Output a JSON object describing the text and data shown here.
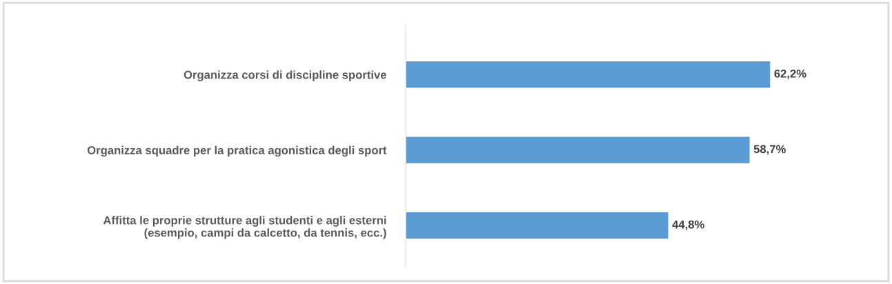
{
  "chart_data": {
    "type": "bar",
    "orientation": "horizontal",
    "categories": [
      "Organizza corsi di discipline sportive",
      "Organizza squadre per la pratica agonistica degli sport",
      "Affitta le proprie strutture agli studenti e agli esterni\n(esempio, campi da calcetto, da tennis, ecc.)"
    ],
    "values": [
      62.2,
      58.7,
      44.8
    ],
    "color": "#5b9bd5",
    "value_labels": [
      "62,2%",
      "58,7%",
      "44,8%"
    ],
    "grid": false,
    "legend": false
  }
}
